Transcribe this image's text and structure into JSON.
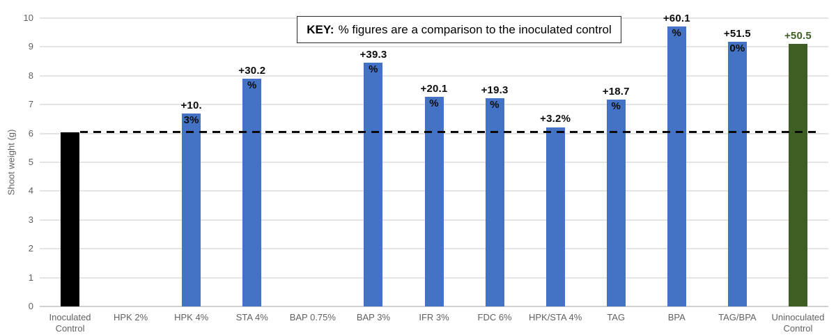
{
  "chart_data": {
    "type": "bar",
    "title": "",
    "xlabel": "",
    "ylabel": "Shoot weight (g)",
    "ylim": [
      0,
      10
    ],
    "ytick_step": 1,
    "grid": true,
    "legend": "none",
    "categories": [
      "Inoculated Control",
      "HPK 2%",
      "HPK 4%",
      "STA 4%",
      "BAP 0.75%",
      "BAP 3%",
      "IFR 3%",
      "FDC 6%",
      "HPK/STA 4%",
      "TAG",
      "BPA",
      "TAG/BPA",
      "Uninoculated Control"
    ],
    "values": [
      6.05,
      0,
      6.7,
      7.9,
      0,
      8.45,
      7.27,
      7.22,
      6.22,
      7.18,
      9.7,
      9.18,
      9.11
    ],
    "pct_vs_control": [
      "",
      "",
      "+10.3%",
      "+30.2%",
      "",
      "+39.3%",
      "+20.1%",
      "+19.3%",
      "+3.2%",
      "+18.7%",
      "+60.1%",
      "+51.50%",
      "+50.5"
    ],
    "data_label_lines": [
      [],
      [],
      [
        "+10.",
        "3%"
      ],
      [
        "+30.2",
        "%"
      ],
      [],
      [
        "+39.3",
        "%"
      ],
      [
        "+20.1",
        "%"
      ],
      [
        "+19.3",
        "%"
      ],
      [
        "+3.2%"
      ],
      [
        "+18.7",
        "%"
      ],
      [
        "+60.1",
        "%"
      ],
      [
        "+51.5",
        "0%"
      ],
      [
        "+50.5"
      ]
    ],
    "bar_colors": [
      "#000000",
      "#4472c4",
      "#4472c4",
      "#4472c4",
      "#4472c4",
      "#4472c4",
      "#4472c4",
      "#4472c4",
      "#4472c4",
      "#4472c4",
      "#4472c4",
      "#4472c4",
      "#3e5e23"
    ],
    "label_colors": [
      "#0d0d0d",
      "#0d0d0d",
      "#0d0d0d",
      "#0d0d0d",
      "#0d0d0d",
      "#0d0d0d",
      "#0d0d0d",
      "#0d0d0d",
      "#0d0d0d",
      "#0d0d0d",
      "#0d0d0d",
      "#0d0d0d",
      "#3e5e23"
    ],
    "reference_line": {
      "value": 6.05,
      "style": "dashed",
      "color": "#000000"
    }
  },
  "key_box": {
    "prefix": "KEY:",
    "text": "% figures are a comparison to the inoculated control"
  },
  "colors": {
    "background": "#ffffff",
    "bar_blue": "#4472c4",
    "bar_black": "#000000",
    "bar_green": "#3e5e23",
    "gridline": "#e4e4e4",
    "axis_line": "#d0d0d0",
    "axis_text": "#616161",
    "data_label": "#0d0d0d"
  }
}
